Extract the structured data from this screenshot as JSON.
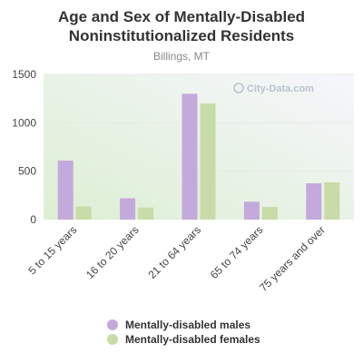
{
  "chart_data": {
    "type": "bar",
    "title": "Age and Sex of Mentally-Disabled Noninstitutionalized Residents",
    "subtitle": "Billings, MT",
    "categories": [
      "5 to 15 years",
      "16 to 20 years",
      "21 to 64 years",
      "65 to 74 years",
      "75 years and over"
    ],
    "series": [
      {
        "name": "Mentally-disabled males",
        "color": "#c3a9dc",
        "values": [
          610,
          220,
          1300,
          185,
          375
        ]
      },
      {
        "name": "Mentally-disabled females",
        "color": "#c8dba8",
        "values": [
          135,
          125,
          1200,
          130,
          385
        ]
      }
    ],
    "ylim": [
      0,
      1500
    ],
    "yticks": [
      0,
      500,
      1000,
      1500
    ],
    "xlabel": "",
    "ylabel": "",
    "grid": true,
    "legend_position": "bottom",
    "watermark": "City-Data.com"
  }
}
